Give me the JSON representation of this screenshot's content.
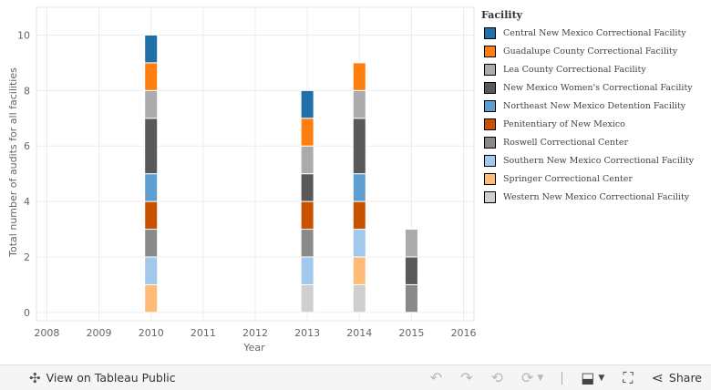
{
  "chart_data": {
    "type": "bar",
    "stacked": true,
    "xlabel": "Year",
    "ylabel": "Total number of audits for all facilities",
    "x_ticks": [
      "2008",
      "2009",
      "2010",
      "2011",
      "2012",
      "2013",
      "2014",
      "2015",
      "2016"
    ],
    "xlim": [
      2007.8,
      2016.2
    ],
    "ylim": [
      -0.3,
      11
    ],
    "y_ticks": [
      0,
      2,
      4,
      6,
      8,
      10
    ],
    "grid": true,
    "legend_title": "Facility",
    "legend_position": "right",
    "series": [
      {
        "name": "Central New Mexico Correctional Facility",
        "color": "#1f6fa8",
        "points": [
          {
            "x": 2010,
            "y": 1
          },
          {
            "x": 2013,
            "y": 1
          }
        ]
      },
      {
        "name": "Guadalupe County Correctional Facility",
        "color": "#ff7f0e",
        "points": [
          {
            "x": 2010,
            "y": 1
          },
          {
            "x": 2013,
            "y": 1
          },
          {
            "x": 2014,
            "y": 1
          }
        ]
      },
      {
        "name": "Lea County Correctional Facility",
        "color": "#ababab",
        "points": [
          {
            "x": 2010,
            "y": 1
          },
          {
            "x": 2013,
            "y": 1
          },
          {
            "x": 2014,
            "y": 1
          },
          {
            "x": 2015,
            "y": 1
          }
        ]
      },
      {
        "name": "New Mexico Women's Correctional Facility",
        "color": "#595959",
        "points": [
          {
            "x": 2010,
            "y": 2
          },
          {
            "x": 2013,
            "y": 1
          },
          {
            "x": 2014,
            "y": 2
          },
          {
            "x": 2015,
            "y": 1
          }
        ]
      },
      {
        "name": "Northeast New Mexico Detention Facility",
        "color": "#5f9ed1",
        "points": [
          {
            "x": 2010,
            "y": 1
          },
          {
            "x": 2014,
            "y": 1
          }
        ]
      },
      {
        "name": "Penitentiary of New Mexico",
        "color": "#c85200",
        "points": [
          {
            "x": 2010,
            "y": 1
          },
          {
            "x": 2013,
            "y": 1
          },
          {
            "x": 2014,
            "y": 1
          }
        ]
      },
      {
        "name": "Roswell Correctional Center",
        "color": "#898989",
        "points": [
          {
            "x": 2010,
            "y": 1
          },
          {
            "x": 2013,
            "y": 1
          },
          {
            "x": 2015,
            "y": 1
          }
        ]
      },
      {
        "name": "Southern New Mexico Correctional Facility",
        "color": "#a2c8ec",
        "points": [
          {
            "x": 2010,
            "y": 1
          },
          {
            "x": 2013,
            "y": 1
          },
          {
            "x": 2014,
            "y": 1
          }
        ]
      },
      {
        "name": "Springer Correctional Center",
        "color": "#ffbc79",
        "points": [
          {
            "x": 2010,
            "y": 1
          },
          {
            "x": 2014,
            "y": 1
          }
        ]
      },
      {
        "name": "Western New Mexico Correctional Facility",
        "color": "#cfcfcf",
        "points": [
          {
            "x": 2013,
            "y": 1
          },
          {
            "x": 2014,
            "y": 1
          }
        ]
      }
    ]
  },
  "toolbar": {
    "view_label": "View on Tableau Public",
    "share_label": "Share"
  }
}
